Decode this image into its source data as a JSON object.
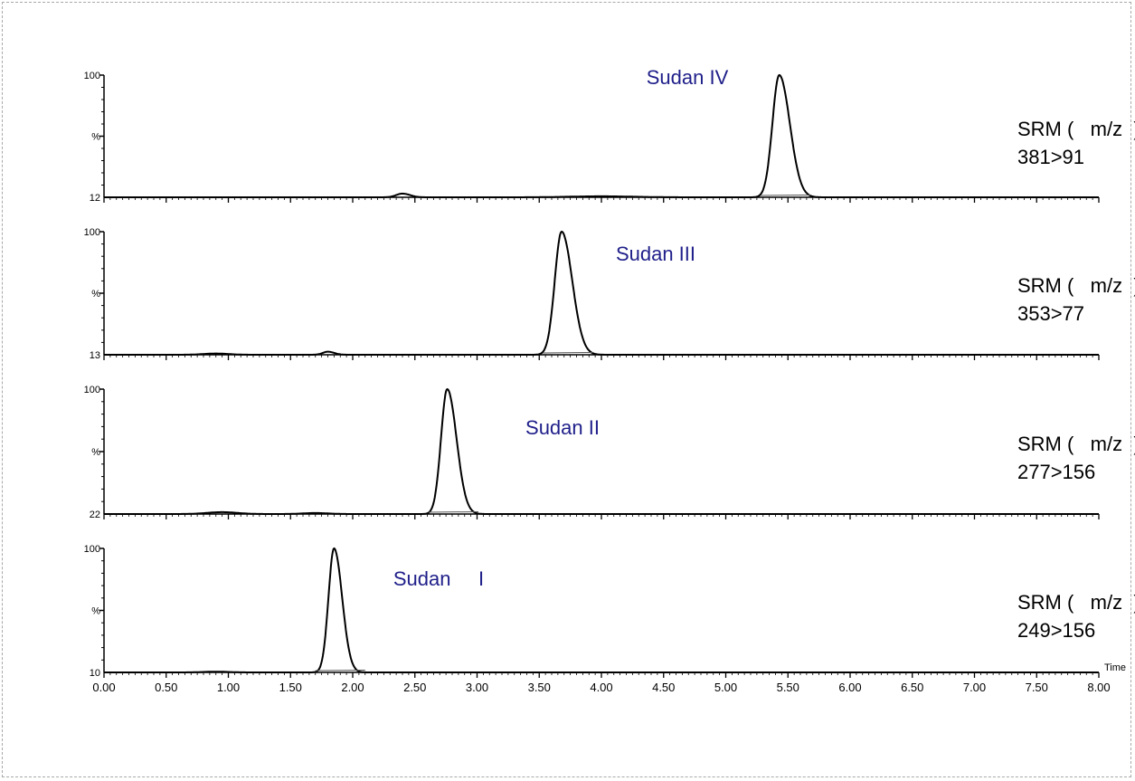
{
  "chart_data": {
    "type": "line",
    "xlabel": "Time",
    "xlim": [
      0,
      8
    ],
    "x_ticks": [
      "0.00",
      "0.50",
      "1.00",
      "1.50",
      "2.00",
      "2.50",
      "3.00",
      "3.50",
      "4.00",
      "4.50",
      "5.00",
      "5.50",
      "6.00",
      "6.50",
      "7.00",
      "7.50",
      "8.00"
    ],
    "grid": false,
    "panels": [
      {
        "peak_label": "Sudan IV",
        "srm_title": "SRM (   m/z  )",
        "transition": "381>91",
        "y_axis": {
          "top": "100",
          "mid": "%",
          "bottom": "12"
        },
        "peaks": [
          {
            "rt": 5.43,
            "height": 100,
            "sigma_left": 0.055,
            "sigma_right": 0.085
          },
          {
            "rt": 2.4,
            "height": 3,
            "sigma_left": 0.05,
            "sigma_right": 0.06
          },
          {
            "rt": 4.0,
            "height": 0.8,
            "sigma_left": 0.25,
            "sigma_right": 0.25
          }
        ]
      },
      {
        "peak_label": "Sudan III",
        "srm_title": "SRM (   m/z  )",
        "transition": "353>77",
        "y_axis": {
          "top": "100",
          "mid": "%",
          "bottom": "13"
        },
        "peaks": [
          {
            "rt": 3.68,
            "height": 100,
            "sigma_left": 0.055,
            "sigma_right": 0.085
          },
          {
            "rt": 1.8,
            "height": 2.5,
            "sigma_left": 0.04,
            "sigma_right": 0.05
          },
          {
            "rt": 0.9,
            "height": 1,
            "sigma_left": 0.1,
            "sigma_right": 0.1
          }
        ]
      },
      {
        "peak_label": "Sudan II",
        "srm_title": "SRM (   m/z  )",
        "transition": "277>156",
        "y_axis": {
          "top": "100",
          "mid": "%",
          "bottom": "22"
        },
        "peaks": [
          {
            "rt": 2.76,
            "height": 100,
            "sigma_left": 0.05,
            "sigma_right": 0.075
          },
          {
            "rt": 0.95,
            "height": 1.5,
            "sigma_left": 0.12,
            "sigma_right": 0.12
          },
          {
            "rt": 1.7,
            "height": 0.8,
            "sigma_left": 0.1,
            "sigma_right": 0.1
          }
        ]
      },
      {
        "peak_label": "Sudan     I",
        "srm_title": "SRM (   m/z  )",
        "transition": "249>156",
        "y_axis": {
          "top": "100",
          "mid": "%",
          "bottom": "10"
        },
        "peaks": [
          {
            "rt": 1.85,
            "height": 100,
            "sigma_left": 0.045,
            "sigma_right": 0.065
          },
          {
            "rt": 0.9,
            "height": 0.6,
            "sigma_left": 0.1,
            "sigma_right": 0.1
          }
        ]
      }
    ]
  }
}
